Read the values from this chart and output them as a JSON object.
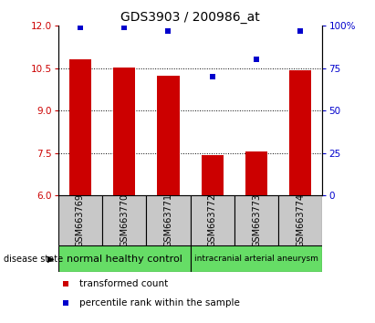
{
  "title": "GDS3903 / 200986_at",
  "samples": [
    "GSM663769",
    "GSM663770",
    "GSM663771",
    "GSM663772",
    "GSM663773",
    "GSM663774"
  ],
  "red_values": [
    10.82,
    10.52,
    10.22,
    7.43,
    7.57,
    10.42
  ],
  "blue_values": [
    99,
    99,
    97,
    70,
    80,
    97
  ],
  "ylim_left": [
    6,
    12
  ],
  "ylim_right": [
    0,
    100
  ],
  "yticks_left": [
    6,
    7.5,
    9,
    10.5,
    12
  ],
  "yticks_right": [
    0,
    25,
    50,
    75,
    100
  ],
  "ytick_right_labels": [
    "0",
    "25",
    "50",
    "75",
    "100%"
  ],
  "grid_lines": [
    7.5,
    9,
    10.5
  ],
  "red_color": "#cc0000",
  "blue_color": "#0000cc",
  "bar_width": 0.5,
  "group1_label": "normal healthy control",
  "group2_label": "intracranial arterial aneurysm",
  "group_color": "#66dd66",
  "sample_box_color": "#c8c8c8",
  "disease_state_label": "disease state",
  "legend_red": "transformed count",
  "legend_blue": "percentile rank within the sample",
  "title_fontsize": 10,
  "tick_fontsize": 7.5,
  "sample_fontsize": 7,
  "group_fontsize1": 8,
  "group_fontsize2": 6.5
}
